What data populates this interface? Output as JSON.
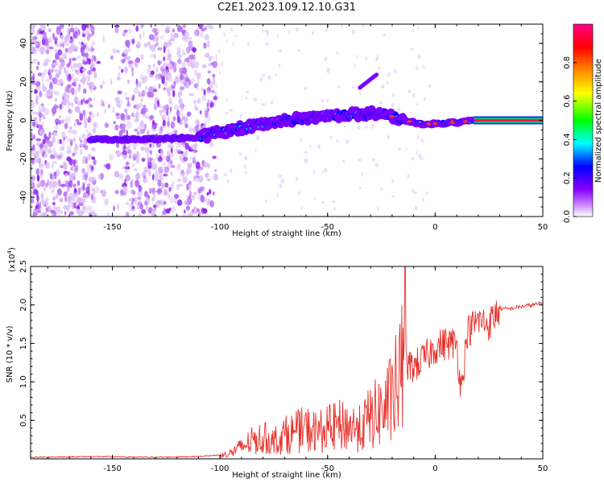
{
  "title": "C2E1.2023.109.12.10.G31",
  "chart_data": [
    {
      "type": "heatmap",
      "xlabel": "Height of straight line (km)",
      "ylabel": "Frequency (Hz)",
      "xlim": [
        -188,
        50
      ],
      "ylim": [
        -50,
        50
      ],
      "xticks": [
        -150,
        -100,
        -50,
        0,
        50
      ],
      "yticks": [
        -40,
        -20,
        0,
        20,
        40
      ],
      "colorbar": {
        "label": "Normalized spectral amplitude",
        "range": [
          0,
          1
        ],
        "ticks": [
          "0.0",
          "0.2",
          "0.4",
          "0.6",
          "0.8"
        ],
        "colors": [
          "#ffffff",
          "#8800ff",
          "#0000ff",
          "#00ffff",
          "#00ff00",
          "#ffff00",
          "#ff8800",
          "#ff0000",
          "#ff0088"
        ]
      },
      "ridge": [
        {
          "x": -160,
          "y": -10
        },
        {
          "x": -140,
          "y": -10
        },
        {
          "x": -110,
          "y": -9
        },
        {
          "x": -100,
          "y": -6
        },
        {
          "x": -85,
          "y": -3
        },
        {
          "x": -70,
          "y": 0
        },
        {
          "x": -55,
          "y": 2
        },
        {
          "x": -40,
          "y": 3
        },
        {
          "x": -25,
          "y": 4
        },
        {
          "x": -15,
          "y": 0
        },
        {
          "x": -5,
          "y": -2
        },
        {
          "x": 10,
          "y": -1
        },
        {
          "x": 20,
          "y": 0
        },
        {
          "x": 50,
          "y": 0
        }
      ],
      "side_feature": [
        {
          "x": -35,
          "y": 17
        },
        {
          "x": -27,
          "y": 24
        }
      ]
    },
    {
      "type": "line",
      "xlabel": "Height of straight line (km)",
      "ylabel": "SNR (10 * v/v)",
      "yscale_label": "(x10",
      "yscale_exp": "4",
      "xlim": [
        -188,
        50
      ],
      "ylim": [
        0,
        2.5
      ],
      "xticks": [
        -150,
        -100,
        -50,
        0,
        50
      ],
      "yticks": [
        "0.5",
        "1.0",
        "1.5",
        "2.0",
        "2.5"
      ],
      "color": "#e8322c",
      "series": [
        {
          "x": [
            -188,
            -160,
            -130,
            -110,
            -100,
            -95,
            -90,
            -85,
            -80,
            -75,
            -70,
            -65,
            -60,
            -55,
            -50,
            -45,
            -40,
            -35,
            -30,
            -25,
            -20,
            -15,
            -13,
            -10,
            -5,
            0,
            5,
            10,
            12,
            15,
            20,
            25,
            30,
            35,
            40,
            45,
            50
          ],
          "y": [
            0.02,
            0.03,
            0.02,
            0.03,
            0.05,
            0.1,
            0.2,
            0.3,
            0.35,
            0.3,
            0.4,
            0.45,
            0.5,
            0.45,
            0.5,
            0.55,
            0.55,
            0.5,
            0.7,
            0.8,
            1.0,
            1.5,
            1.2,
            1.2,
            1.3,
            1.45,
            1.5,
            1.5,
            0.9,
            1.65,
            1.8,
            1.75,
            1.95,
            1.95,
            1.98,
            2.0,
            2.02
          ]
        }
      ]
    }
  ]
}
